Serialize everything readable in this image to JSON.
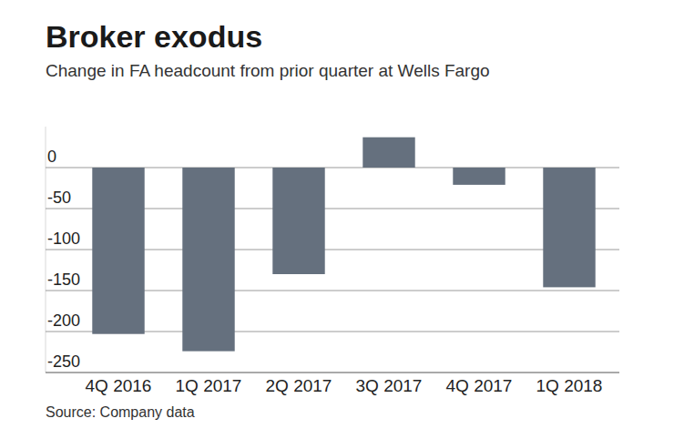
{
  "chart_data": {
    "type": "bar",
    "title": "Broker exodus",
    "subtitle": "Change in FA headcount from prior quarter at Wells Fargo",
    "source": "Source: Company data",
    "categories": [
      "4Q 2016",
      "1Q 2017",
      "2Q 2017",
      "3Q 2017",
      "4Q 2017",
      "1Q 2018"
    ],
    "values": [
      -203,
      -224,
      -130,
      37,
      -21,
      -146
    ],
    "color": "#65707e",
    "ylim": [
      -250,
      50
    ],
    "yticks": [
      -250,
      -200,
      -150,
      -100,
      -50,
      0
    ],
    "grid": true
  }
}
